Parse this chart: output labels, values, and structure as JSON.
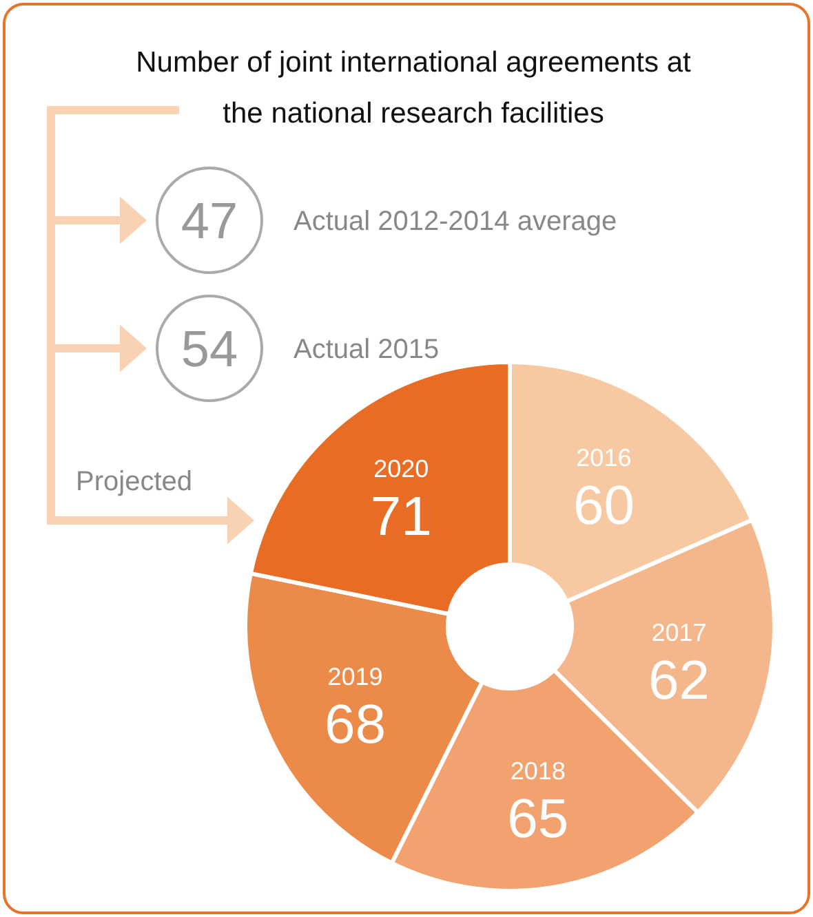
{
  "chart_data": {
    "type": "donut",
    "title": "Number of joint international agreements at the national research facilities",
    "categories": [
      "2016",
      "2017",
      "2018",
      "2019",
      "2020"
    ],
    "values": [
      60,
      62,
      65,
      68,
      71
    ],
    "colors": [
      "#f7c9a3",
      "#f4b78c",
      "#f1a26f",
      "#ec8a4a",
      "#e86c24"
    ],
    "data_labels": true,
    "annotations": [
      "47",
      "Actual 2012-2014 average",
      "54",
      "Actual 2015",
      "Projected"
    ]
  }
}
